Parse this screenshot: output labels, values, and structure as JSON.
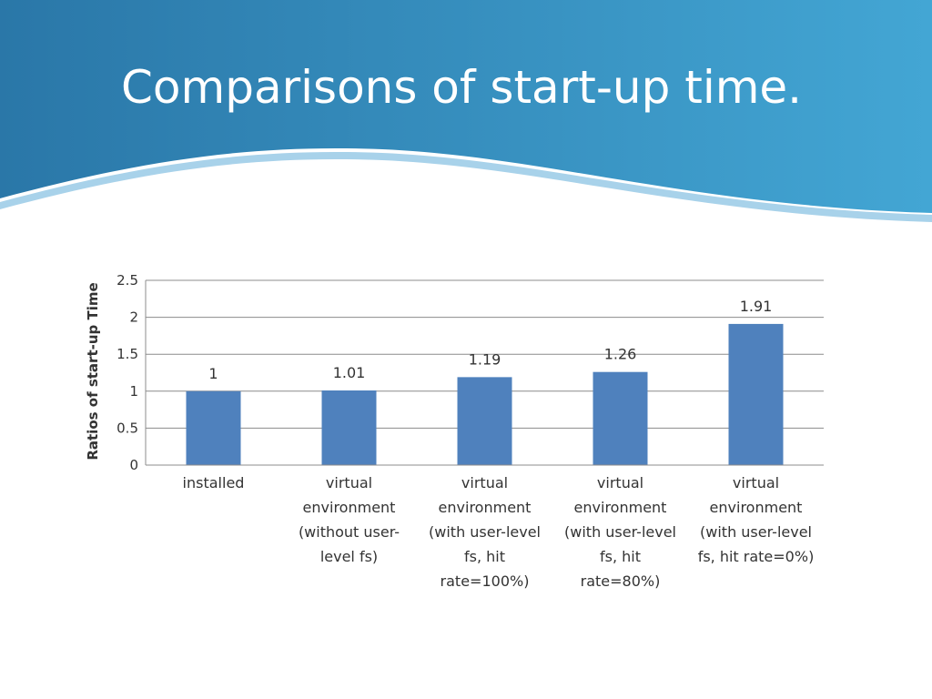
{
  "slide": {
    "title": "Comparisons of start-up time.",
    "banner_colors": {
      "left": "#2a77a8",
      "right": "#43a6d4"
    }
  },
  "chart_data": {
    "type": "bar",
    "title": "",
    "xlabel": "",
    "ylabel": "Ratios of start-up Time",
    "ylim": [
      0,
      2.5
    ],
    "yticks": [
      {
        "value": 0,
        "label": "0"
      },
      {
        "value": 0.5,
        "label": "0.5"
      },
      {
        "value": 1,
        "label": "1"
      },
      {
        "value": 1.5,
        "label": "1.5"
      },
      {
        "value": 2,
        "label": "2"
      },
      {
        "value": 2.5,
        "label": "2.5"
      }
    ],
    "grid": true,
    "legend": "none",
    "bar_color": "#4f81bd",
    "categories": [
      [
        "installed"
      ],
      [
        "virtual",
        "environment",
        "(without user-",
        "level fs)"
      ],
      [
        "virtual",
        "environment",
        "(with user-level",
        "fs, hit",
        "rate=100%)"
      ],
      [
        "virtual",
        "environment",
        "(with user-level",
        "fs, hit",
        "rate=80%)"
      ],
      [
        "virtual",
        "environment",
        "(with user-level",
        "fs, hit rate=0%)"
      ]
    ],
    "values": [
      1,
      1.01,
      1.19,
      1.26,
      1.91
    ],
    "data_labels": [
      "1",
      "1.01",
      "1.19",
      "1.26",
      "1.91"
    ]
  }
}
